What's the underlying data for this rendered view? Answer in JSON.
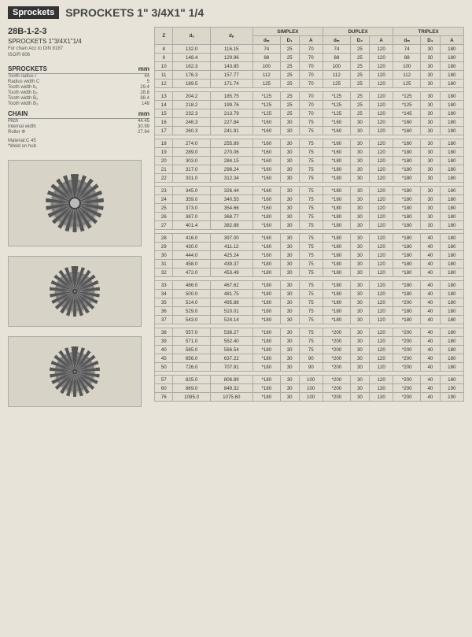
{
  "header": {
    "badge": "Sprockets",
    "title": "SPROCKETS 1\" 3/4X1\" 1/4"
  },
  "left": {
    "model": "28B-1-2-3",
    "subtitle": "SPROCKETS 1\"3/4X1\"1/4",
    "note1": "For chain Acc to DIN 8187",
    "note2": "ISO/R 606",
    "sprockets_label": "SPROCKETS",
    "mm": "mm",
    "sprockets": [
      {
        "k": "Tooth radius r",
        "v": "44"
      },
      {
        "k": "Radius width C",
        "v": "5"
      },
      {
        "k": "Tooth width b₁",
        "v": "29.4"
      },
      {
        "k": "Tooth width b₂",
        "v": "28.8"
      },
      {
        "k": "Tooth width B₂",
        "v": "88.4"
      },
      {
        "k": "Tooth width B₃",
        "v": "148"
      }
    ],
    "chain_label": "CHAIN",
    "chain": [
      {
        "k": "Pitch",
        "v": "44.45"
      },
      {
        "k": "Internal width",
        "v": "30.99"
      },
      {
        "k": "Roller Φ",
        "v": "27.94"
      }
    ],
    "material": "Material:C 45",
    "weld": "*Weld on hub"
  },
  "table": {
    "headers": {
      "z": "Z",
      "de": "dₑ",
      "dp": "dₚ",
      "simplex": "SIMPLEX",
      "duplex": "DUPLEX",
      "triplex": "TRIPLEX",
      "dm": "dₘ",
      "d1": "D₁",
      "d2": "D₂",
      "d3": "D₃",
      "a": "A"
    },
    "groups": [
      [
        {
          "z": "8",
          "de": "132.0",
          "dp": "116.15",
          "s": [
            "74",
            "25",
            "70"
          ],
          "d": [
            "74",
            "25",
            "120"
          ],
          "t": [
            "74",
            "30",
            "180"
          ]
        },
        {
          "z": "9",
          "de": "148.4",
          "dp": "129.96",
          "s": [
            "88",
            "25",
            "70"
          ],
          "d": [
            "88",
            "25",
            "120"
          ],
          "t": [
            "88",
            "30",
            "180"
          ]
        },
        {
          "z": "10",
          "de": "162.3",
          "dp": "143.85",
          "s": [
            "100",
            "25",
            "70"
          ],
          "d": [
            "100",
            "25",
            "120"
          ],
          "t": [
            "100",
            "30",
            "180"
          ]
        },
        {
          "z": "11",
          "de": "176.3",
          "dp": "157.77",
          "s": [
            "112",
            "25",
            "70"
          ],
          "d": [
            "112",
            "25",
            "120"
          ],
          "t": [
            "112",
            "30",
            "180"
          ]
        },
        {
          "z": "12",
          "de": "189.5",
          "dp": "171.74",
          "s": [
            "125",
            "25",
            "70"
          ],
          "d": [
            "125",
            "25",
            "120"
          ],
          "t": [
            "125",
            "30",
            "180"
          ]
        }
      ],
      [
        {
          "z": "13",
          "de": "204.2",
          "dp": "185.75",
          "s": [
            "*125",
            "25",
            "70"
          ],
          "d": [
            "*125",
            "25",
            "120"
          ],
          "t": [
            "*125",
            "30",
            "180"
          ]
        },
        {
          "z": "14",
          "de": "218.2",
          "dp": "199.76",
          "s": [
            "*125",
            "25",
            "70"
          ],
          "d": [
            "*125",
            "25",
            "120"
          ],
          "t": [
            "*125",
            "30",
            "180"
          ]
        },
        {
          "z": "15",
          "de": "232.3",
          "dp": "213.79",
          "s": [
            "*125",
            "25",
            "70"
          ],
          "d": [
            "*125",
            "25",
            "120"
          ],
          "t": [
            "*145",
            "30",
            "180"
          ]
        },
        {
          "z": "16",
          "de": "246.3",
          "dp": "227.84",
          "s": [
            "*160",
            "30",
            "75"
          ],
          "d": [
            "*160",
            "30",
            "120"
          ],
          "t": [
            "*160",
            "30",
            "180"
          ]
        },
        {
          "z": "17",
          "de": "260.3",
          "dp": "241.91",
          "s": [
            "*160",
            "30",
            "75"
          ],
          "d": [
            "*160",
            "30",
            "120"
          ],
          "t": [
            "*160",
            "30",
            "180"
          ]
        }
      ],
      [
        {
          "z": "18",
          "de": "274.0",
          "dp": "255.89",
          "s": [
            "*160",
            "30",
            "75"
          ],
          "d": [
            "*160",
            "30",
            "120"
          ],
          "t": [
            "*160",
            "30",
            "180"
          ]
        },
        {
          "z": "19",
          "de": "289.0",
          "dp": "270.06",
          "s": [
            "*160",
            "30",
            "75"
          ],
          "d": [
            "*160",
            "30",
            "120"
          ],
          "t": [
            "*180",
            "30",
            "180"
          ]
        },
        {
          "z": "20",
          "de": "303.0",
          "dp": "284.15",
          "s": [
            "*160",
            "30",
            "75"
          ],
          "d": [
            "*180",
            "30",
            "120"
          ],
          "t": [
            "*180",
            "30",
            "180"
          ]
        },
        {
          "z": "21",
          "de": "317.0",
          "dp": "298.24",
          "s": [
            "*160",
            "30",
            "75"
          ],
          "d": [
            "*180",
            "30",
            "120"
          ],
          "t": [
            "*180",
            "30",
            "180"
          ]
        },
        {
          "z": "22",
          "de": "331.0",
          "dp": "312.34",
          "s": [
            "*160",
            "30",
            "75"
          ],
          "d": [
            "*180",
            "30",
            "120"
          ],
          "t": [
            "*180",
            "30",
            "180"
          ]
        }
      ],
      [
        {
          "z": "23",
          "de": "345.0",
          "dp": "326.44",
          "s": [
            "*160",
            "30",
            "75"
          ],
          "d": [
            "*180",
            "30",
            "120"
          ],
          "t": [
            "*180",
            "30",
            "180"
          ]
        },
        {
          "z": "24",
          "de": "359.0",
          "dp": "340.55",
          "s": [
            "*160",
            "30",
            "75"
          ],
          "d": [
            "*180",
            "30",
            "120"
          ],
          "t": [
            "*180",
            "30",
            "180"
          ]
        },
        {
          "z": "25",
          "de": "373.0",
          "dp": "354.66",
          "s": [
            "*160",
            "30",
            "75"
          ],
          "d": [
            "*180",
            "30",
            "120"
          ],
          "t": [
            "*180",
            "30",
            "180"
          ]
        },
        {
          "z": "26",
          "de": "387.0",
          "dp": "368.77",
          "s": [
            "*180",
            "30",
            "75"
          ],
          "d": [
            "*180",
            "30",
            "120"
          ],
          "t": [
            "*180",
            "30",
            "180"
          ]
        },
        {
          "z": "27",
          "de": "401.4",
          "dp": "382.88",
          "s": [
            "*160",
            "30",
            "75"
          ],
          "d": [
            "*180",
            "30",
            "120"
          ],
          "t": [
            "*180",
            "30",
            "180"
          ]
        }
      ],
      [
        {
          "z": "28",
          "de": "416.0",
          "dp": "397.00",
          "s": [
            "*160",
            "30",
            "75"
          ],
          "d": [
            "*180",
            "30",
            "120"
          ],
          "t": [
            "*180",
            "40",
            "180"
          ]
        },
        {
          "z": "29",
          "de": "430.0",
          "dp": "411.12",
          "s": [
            "*160",
            "30",
            "75"
          ],
          "d": [
            "*180",
            "30",
            "120"
          ],
          "t": [
            "*180",
            "40",
            "180"
          ]
        },
        {
          "z": "30",
          "de": "444.0",
          "dp": "425.24",
          "s": [
            "*160",
            "30",
            "75"
          ],
          "d": [
            "*180",
            "30",
            "120"
          ],
          "t": [
            "*180",
            "40",
            "180"
          ]
        },
        {
          "z": "31",
          "de": "458.0",
          "dp": "439.37",
          "s": [
            "*180",
            "30",
            "75"
          ],
          "d": [
            "*180",
            "30",
            "120"
          ],
          "t": [
            "*180",
            "40",
            "180"
          ]
        },
        {
          "z": "32",
          "de": "472.0",
          "dp": "453.49",
          "s": [
            "*180",
            "30",
            "75"
          ],
          "d": [
            "*180",
            "30",
            "120"
          ],
          "t": [
            "*180",
            "40",
            "180"
          ]
        }
      ],
      [
        {
          "z": "33",
          "de": "486.0",
          "dp": "467.62",
          "s": [
            "*180",
            "30",
            "75"
          ],
          "d": [
            "*180",
            "30",
            "120"
          ],
          "t": [
            "*180",
            "40",
            "180"
          ]
        },
        {
          "z": "34",
          "de": "500.0",
          "dp": "481.75",
          "s": [
            "*180",
            "30",
            "75"
          ],
          "d": [
            "*180",
            "30",
            "120"
          ],
          "t": [
            "*180",
            "40",
            "180"
          ]
        },
        {
          "z": "35",
          "de": "514.0",
          "dp": "495.88",
          "s": [
            "*180",
            "30",
            "75"
          ],
          "d": [
            "*180",
            "30",
            "120"
          ],
          "t": [
            "*200",
            "40",
            "180"
          ]
        },
        {
          "z": "36",
          "de": "529.0",
          "dp": "510.01",
          "s": [
            "*180",
            "30",
            "75"
          ],
          "d": [
            "*180",
            "30",
            "120"
          ],
          "t": [
            "*180",
            "40",
            "180"
          ]
        },
        {
          "z": "37",
          "de": "543.0",
          "dp": "524.14",
          "s": [
            "*180",
            "30",
            "75"
          ],
          "d": [
            "*180",
            "30",
            "120"
          ],
          "t": [
            "*180",
            "40",
            "180"
          ]
        }
      ],
      [
        {
          "z": "38",
          "de": "557.0",
          "dp": "538.27",
          "s": [
            "*180",
            "30",
            "75"
          ],
          "d": [
            "*200",
            "30",
            "120"
          ],
          "t": [
            "*200",
            "40",
            "180"
          ]
        },
        {
          "z": "39",
          "de": "571.0",
          "dp": "552.40",
          "s": [
            "*180",
            "30",
            "75"
          ],
          "d": [
            "*200",
            "30",
            "120"
          ],
          "t": [
            "*200",
            "40",
            "180"
          ]
        },
        {
          "z": "40",
          "de": "585.0",
          "dp": "566.54",
          "s": [
            "*180",
            "30",
            "75"
          ],
          "d": [
            "*200",
            "30",
            "120"
          ],
          "t": [
            "*200",
            "40",
            "180"
          ]
        },
        {
          "z": "45",
          "de": "656.0",
          "dp": "637.22",
          "s": [
            "*180",
            "30",
            "90"
          ],
          "d": [
            "*200",
            "30",
            "120"
          ],
          "t": [
            "*200",
            "40",
            "180"
          ]
        },
        {
          "z": "50",
          "de": "726.0",
          "dp": "707.91",
          "s": [
            "*180",
            "30",
            "90"
          ],
          "d": [
            "*200",
            "30",
            "120"
          ],
          "t": [
            "*200",
            "40",
            "180"
          ]
        }
      ],
      [
        {
          "z": "57",
          "de": "825.0",
          "dp": "806.89",
          "s": [
            "*180",
            "30",
            "100"
          ],
          "d": [
            "*200",
            "30",
            "120"
          ],
          "t": [
            "*200",
            "40",
            "180"
          ]
        },
        {
          "z": "60",
          "de": "869.0",
          "dp": "849.32",
          "s": [
            "*180",
            "30",
            "100"
          ],
          "d": [
            "*200",
            "30",
            "130"
          ],
          "t": [
            "*200",
            "40",
            "190"
          ]
        },
        {
          "z": "76",
          "de": "1095.0",
          "dp": "1075.60",
          "s": [
            "*180",
            "30",
            "100"
          ],
          "d": [
            "*200",
            "30",
            "130"
          ],
          "t": [
            "*200",
            "40",
            "190"
          ]
        }
      ]
    ]
  }
}
